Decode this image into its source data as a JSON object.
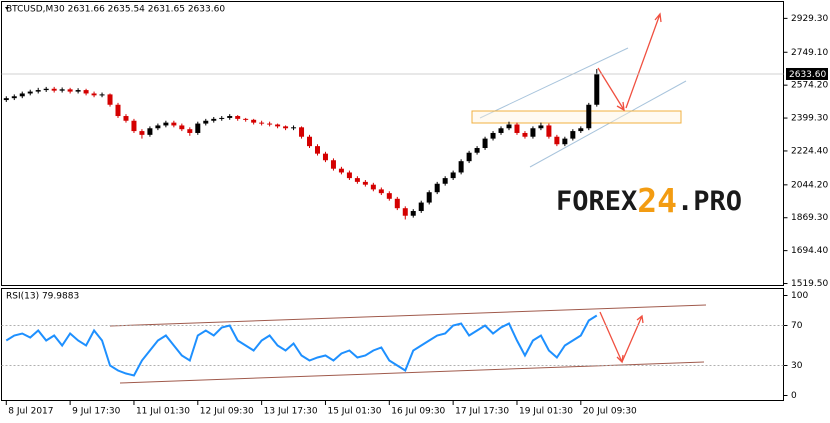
{
  "chart_data": [
    {
      "type": "candlestick",
      "title": "BTCUSD,M30  2631.66 2635.54 2631.65 2633.60",
      "up_color": "#000000",
      "down_color": "#d40000",
      "watermark": [
        "FOREX",
        "24",
        ".PRO"
      ],
      "x": [
        0,
        1,
        2,
        3,
        4,
        5,
        6,
        7,
        8,
        9,
        10,
        11,
        12,
        13,
        14,
        15,
        16,
        17,
        18,
        19,
        20,
        21,
        22,
        23,
        24,
        25,
        26,
        27,
        28,
        29,
        30,
        31,
        32,
        33,
        34,
        35,
        36,
        37,
        38,
        39,
        40,
        41,
        42,
        43,
        44,
        45,
        46,
        47,
        48,
        49,
        50,
        51,
        52,
        53,
        54,
        55,
        56,
        57,
        58,
        59,
        60,
        61,
        62,
        63,
        64,
        65,
        66,
        67,
        68,
        69,
        70,
        71,
        72,
        73,
        74
      ],
      "open": [
        2495,
        2505,
        2515,
        2530,
        2540,
        2548,
        2555,
        2545,
        2552,
        2540,
        2548,
        2530,
        2520,
        2525,
        2470,
        2410,
        2385,
        2330,
        2310,
        2345,
        2360,
        2375,
        2360,
        2340,
        2320,
        2370,
        2385,
        2395,
        2400,
        2410,
        2395,
        2390,
        2375,
        2370,
        2365,
        2355,
        2345,
        2350,
        2300,
        2250,
        2210,
        2175,
        2130,
        2110,
        2080,
        2060,
        2045,
        2020,
        2000,
        1970,
        1920,
        1880,
        1905,
        1950,
        2005,
        2050,
        2080,
        2110,
        2170,
        2215,
        2240,
        2290,
        2320,
        2345,
        2365,
        2320,
        2300,
        2345,
        2360,
        2300,
        2260,
        2290,
        2330,
        2345,
        2470
      ],
      "high": [
        2515,
        2525,
        2540,
        2550,
        2560,
        2565,
        2565,
        2562,
        2560,
        2558,
        2555,
        2540,
        2535,
        2530,
        2480,
        2420,
        2395,
        2340,
        2355,
        2370,
        2385,
        2385,
        2370,
        2350,
        2380,
        2395,
        2405,
        2410,
        2420,
        2415,
        2400,
        2395,
        2385,
        2380,
        2370,
        2360,
        2360,
        2355,
        2310,
        2260,
        2220,
        2185,
        2140,
        2120,
        2090,
        2070,
        2055,
        2030,
        2010,
        1980,
        1930,
        1915,
        1960,
        2015,
        2060,
        2090,
        2120,
        2180,
        2225,
        2250,
        2300,
        2330,
        2355,
        2380,
        2375,
        2330,
        2355,
        2375,
        2370,
        2310,
        2300,
        2340,
        2355,
        2480,
        2660
      ],
      "low": [
        2485,
        2495,
        2505,
        2520,
        2530,
        2538,
        2535,
        2535,
        2530,
        2530,
        2520,
        2510,
        2510,
        2460,
        2400,
        2375,
        2320,
        2290,
        2300,
        2335,
        2350,
        2350,
        2330,
        2305,
        2310,
        2360,
        2375,
        2385,
        2390,
        2385,
        2380,
        2365,
        2360,
        2355,
        2345,
        2335,
        2335,
        2290,
        2240,
        2200,
        2165,
        2120,
        2100,
        2070,
        2050,
        2035,
        2010,
        1990,
        1960,
        1910,
        1860,
        1870,
        1895,
        1940,
        1995,
        2040,
        2070,
        2100,
        2160,
        2205,
        2230,
        2280,
        2310,
        2335,
        2310,
        2290,
        2290,
        2335,
        2290,
        2250,
        2250,
        2280,
        2320,
        2335,
        2460
      ],
      "close": [
        2505,
        2515,
        2530,
        2540,
        2548,
        2555,
        2545,
        2552,
        2540,
        2548,
        2530,
        2520,
        2525,
        2470,
        2410,
        2385,
        2330,
        2310,
        2345,
        2360,
        2375,
        2360,
        2340,
        2320,
        2370,
        2385,
        2395,
        2400,
        2410,
        2395,
        2390,
        2375,
        2370,
        2365,
        2355,
        2345,
        2350,
        2300,
        2250,
        2210,
        2175,
        2130,
        2110,
        2080,
        2060,
        2045,
        2020,
        2000,
        1970,
        1920,
        1880,
        1905,
        1950,
        2005,
        2050,
        2080,
        2110,
        2170,
        2215,
        2240,
        2290,
        2320,
        2345,
        2365,
        2320,
        2300,
        2345,
        2360,
        2300,
        2260,
        2290,
        2330,
        2345,
        2470,
        2633.6
      ],
      "last_price": {
        "value": 2633.6,
        "label": "2633.60"
      },
      "xlim": [
        -0.6,
        97.4
      ],
      "ylim": [
        1509,
        3019
      ],
      "yticks": [
        {
          "value": 2929.3,
          "label": "2929.30"
        },
        {
          "value": 2749.1,
          "label": "2749.10"
        },
        {
          "value": 2574.2,
          "label": "2574.20"
        },
        {
          "value": 2399.3,
          "label": "2399.30"
        },
        {
          "value": 2224.4,
          "label": "2224.40"
        },
        {
          "value": 2044.2,
          "label": "2044.20"
        },
        {
          "value": 1869.3,
          "label": "1869.30"
        },
        {
          "value": 1694.4,
          "label": "1694.40"
        },
        {
          "value": 1519.5,
          "label": "1519.50"
        }
      ],
      "xticks": [
        {
          "value": 0,
          "label": "8 Jul 2017"
        },
        {
          "value": 8,
          "label": "9 Jul 17:30"
        },
        {
          "value": 16,
          "label": "11 Jul 01:30"
        },
        {
          "value": 24,
          "label": "12 Jul 09:30"
        },
        {
          "value": 32,
          "label": "13 Jul 17:30"
        },
        {
          "value": 40,
          "label": "15 Jul 01:30"
        },
        {
          "value": 48,
          "label": "16 Jul 09:30"
        },
        {
          "value": 56,
          "label": "17 Jul 17:30"
        },
        {
          "value": 64,
          "label": "19 Jul 01:30"
        },
        {
          "value": 72,
          "label": "20 Jul 09:30"
        }
      ]
    },
    {
      "type": "line",
      "title": "RSI(13) 79.9883",
      "x": [
        0,
        1,
        2,
        3,
        4,
        5,
        6,
        7,
        8,
        9,
        10,
        11,
        12,
        13,
        14,
        15,
        16,
        17,
        18,
        19,
        20,
        21,
        22,
        23,
        24,
        25,
        26,
        27,
        28,
        29,
        30,
        31,
        32,
        33,
        34,
        35,
        36,
        37,
        38,
        39,
        40,
        41,
        42,
        43,
        44,
        45,
        46,
        47,
        48,
        49,
        50,
        51,
        52,
        53,
        54,
        55,
        56,
        57,
        58,
        59,
        60,
        61,
        62,
        63,
        64,
        65,
        66,
        67,
        68,
        69,
        70,
        71,
        72,
        73,
        74
      ],
      "series": [
        {
          "name": "RSI(13)",
          "color": "#1e90ff",
          "values": [
            55,
            60,
            62,
            58,
            65,
            55,
            60,
            50,
            62,
            55,
            50,
            65,
            55,
            30,
            25,
            22,
            20,
            35,
            45,
            55,
            60,
            50,
            40,
            35,
            60,
            65,
            60,
            68,
            70,
            55,
            50,
            45,
            55,
            60,
            50,
            45,
            52,
            40,
            35,
            38,
            40,
            35,
            42,
            45,
            38,
            40,
            45,
            48,
            35,
            30,
            25,
            45,
            50,
            55,
            60,
            62,
            70,
            72,
            60,
            65,
            70,
            62,
            68,
            72,
            55,
            40,
            55,
            60,
            45,
            38,
            50,
            55,
            60,
            75,
            79.9883
          ]
        }
      ],
      "xlim": [
        -0.6,
        97.4
      ],
      "ylim": [
        -5,
        107
      ],
      "yticks": [
        100,
        70,
        30,
        0
      ],
      "levels": [
        70,
        30
      ]
    }
  ]
}
